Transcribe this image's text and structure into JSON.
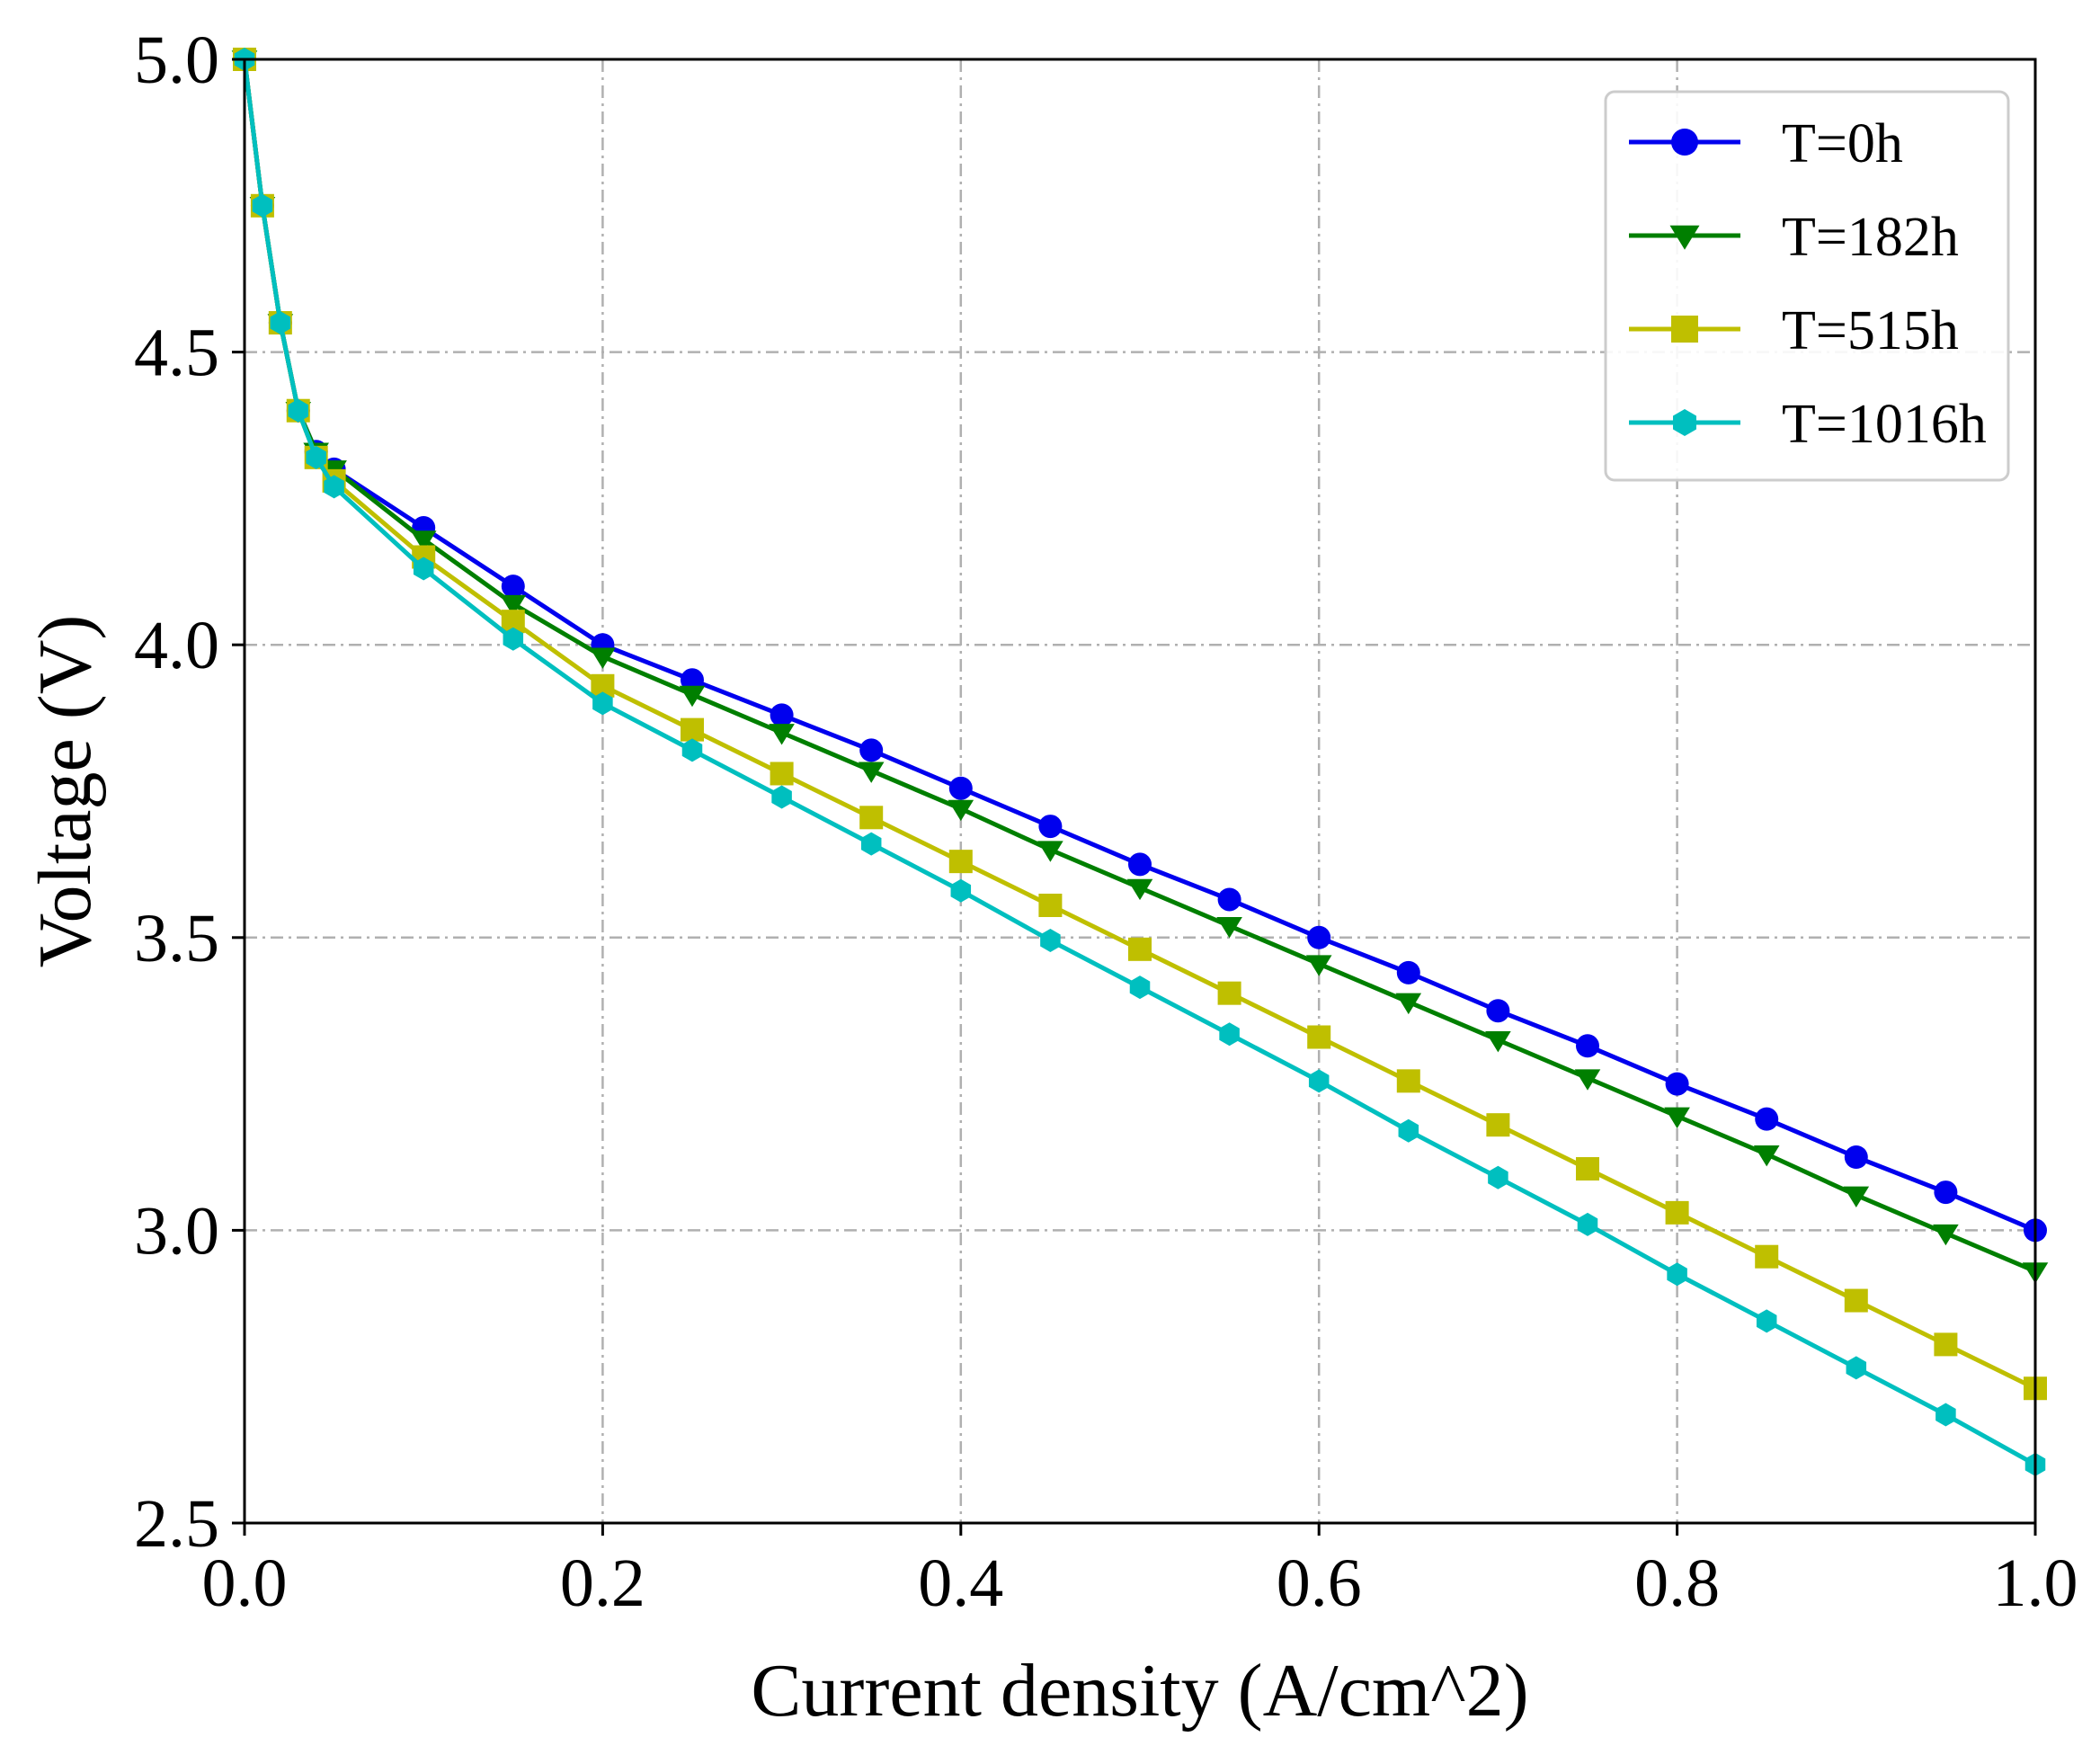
{
  "chart_data": {
    "type": "line",
    "title": "",
    "xlabel": "Current density (A/cm^2)",
    "ylabel": "Voltage (V)",
    "xlim": [
      0.0,
      1.0
    ],
    "ylim": [
      2.5,
      5.0
    ],
    "xticks": [
      "0.0",
      "0.2",
      "0.4",
      "0.6",
      "0.8",
      "1.0"
    ],
    "yticks": [
      "2.5",
      "3.0",
      "3.5",
      "4.0",
      "4.5",
      "5.0"
    ],
    "grid": true,
    "legend_position": "top-right",
    "x": [
      0.0,
      0.01,
      0.02,
      0.03,
      0.04,
      0.05,
      0.1,
      0.15,
      0.2,
      0.25,
      0.3,
      0.35,
      0.4,
      0.45,
      0.5,
      0.55,
      0.6,
      0.65,
      0.7,
      0.75,
      0.8,
      0.85,
      0.9,
      0.95,
      1.0
    ],
    "series": [
      {
        "name": "T=0h",
        "color": "#0000ee",
        "marker": "circle",
        "values": [
          5.0,
          4.75,
          4.55,
          4.4,
          4.33,
          4.3,
          4.2,
          4.1,
          4.0,
          3.94,
          3.88,
          3.82,
          3.755,
          3.69,
          3.625,
          3.565,
          3.5,
          3.44,
          3.375,
          3.315,
          3.25,
          3.19,
          3.125,
          3.065,
          3.0
        ]
      },
      {
        "name": "T=182h",
        "color": "#007f00",
        "marker": "triangle-down",
        "values": [
          5.0,
          4.75,
          4.55,
          4.4,
          4.33,
          4.3,
          4.18,
          4.07,
          3.98,
          3.915,
          3.85,
          3.785,
          3.72,
          3.65,
          3.585,
          3.52,
          3.455,
          3.39,
          3.325,
          3.26,
          3.195,
          3.13,
          3.06,
          2.995,
          2.93
        ]
      },
      {
        "name": "T=515h",
        "color": "#bfbf00",
        "marker": "square",
        "values": [
          5.0,
          4.75,
          4.55,
          4.4,
          4.32,
          4.28,
          4.15,
          4.04,
          3.93,
          3.855,
          3.78,
          3.705,
          3.63,
          3.555,
          3.48,
          3.405,
          3.33,
          3.255,
          3.18,
          3.105,
          3.03,
          2.955,
          2.88,
          2.805,
          2.73
        ]
      },
      {
        "name": "T=1016h",
        "color": "#00bfbf",
        "marker": "hexagon",
        "values": [
          5.0,
          4.75,
          4.55,
          4.4,
          4.32,
          4.27,
          4.13,
          4.01,
          3.9,
          3.82,
          3.74,
          3.66,
          3.58,
          3.495,
          3.415,
          3.335,
          3.255,
          3.17,
          3.09,
          3.01,
          2.925,
          2.845,
          2.765,
          2.685,
          2.6
        ]
      }
    ]
  }
}
